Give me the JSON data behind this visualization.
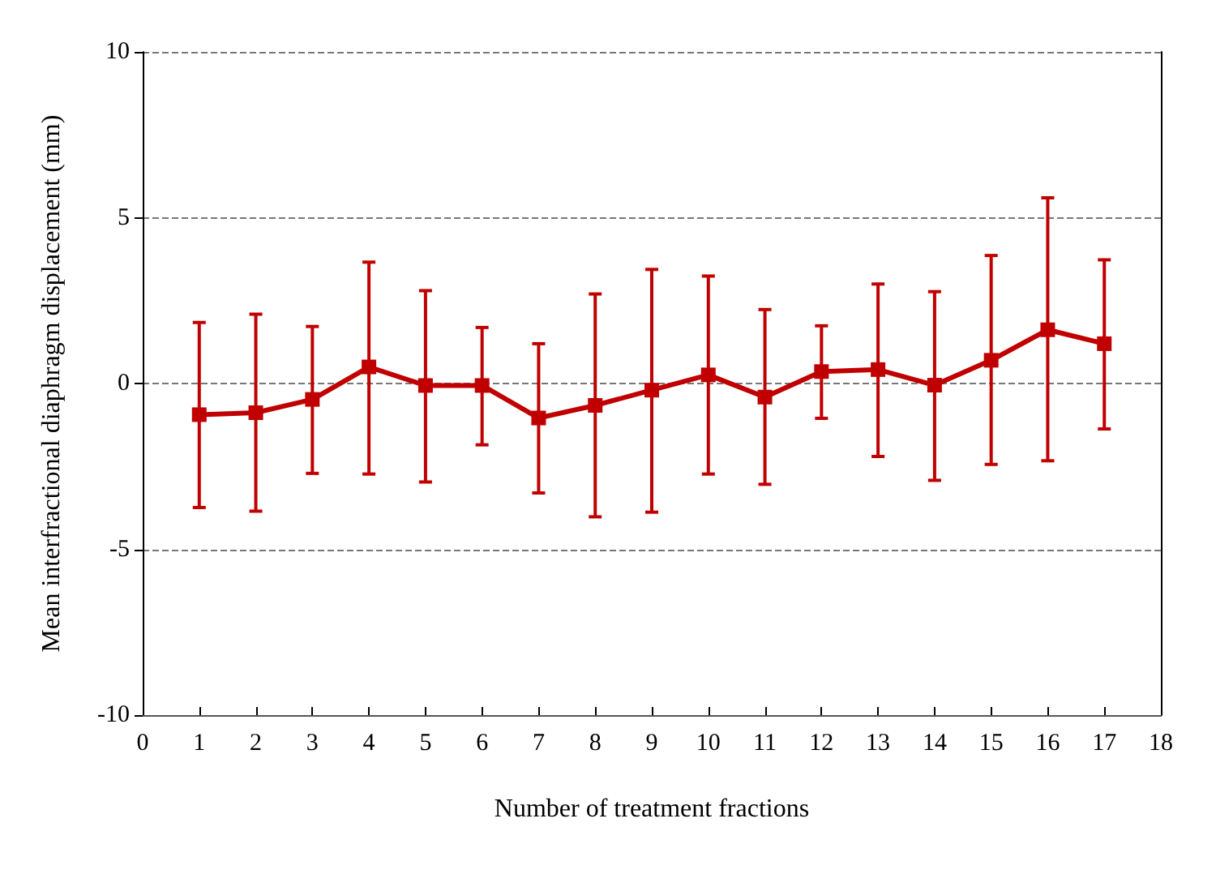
{
  "chart_data": {
    "type": "line",
    "xlabel": "Number of treatment fractions",
    "ylabel": "Mean interfractional diaphragm displacement (mm)",
    "x": [
      1,
      2,
      3,
      4,
      5,
      6,
      7,
      8,
      9,
      10,
      11,
      12,
      13,
      14,
      15,
      16,
      17
    ],
    "series": [
      {
        "color": "#c00000",
        "values": [
          -0.94,
          -0.88,
          -0.48,
          0.5,
          -0.06,
          -0.06,
          -1.04,
          -0.66,
          -0.2,
          0.26,
          -0.41,
          0.36,
          0.42,
          -0.05,
          0.7,
          1.62,
          1.2
        ],
        "errors": [
          [
            -3.74,
            1.84
          ],
          [
            -3.85,
            2.09
          ],
          [
            -2.71,
            1.72
          ],
          [
            -2.73,
            3.66
          ],
          [
            -2.97,
            2.8
          ],
          [
            -1.85,
            1.69
          ],
          [
            -3.3,
            1.2
          ],
          [
            -4.02,
            2.7
          ],
          [
            -3.88,
            3.44
          ],
          [
            -2.73,
            3.24
          ],
          [
            -3.04,
            2.23
          ],
          [
            -1.05,
            1.74
          ],
          [
            -2.2,
            3.0
          ],
          [
            -2.92,
            2.77
          ],
          [
            -2.44,
            3.86
          ],
          [
            -2.33,
            5.6
          ],
          [
            -1.37,
            3.73
          ]
        ]
      }
    ],
    "xlim": [
      0,
      18
    ],
    "xticks": [
      0,
      1,
      2,
      3,
      4,
      5,
      6,
      7,
      8,
      9,
      10,
      11,
      12,
      13,
      14,
      15,
      16,
      17,
      18
    ],
    "ylim": [
      -10,
      10
    ],
    "yticks": [
      -10,
      -5,
      0,
      5,
      10
    ],
    "grid": "y",
    "marker": "square",
    "line_style": "solid"
  }
}
